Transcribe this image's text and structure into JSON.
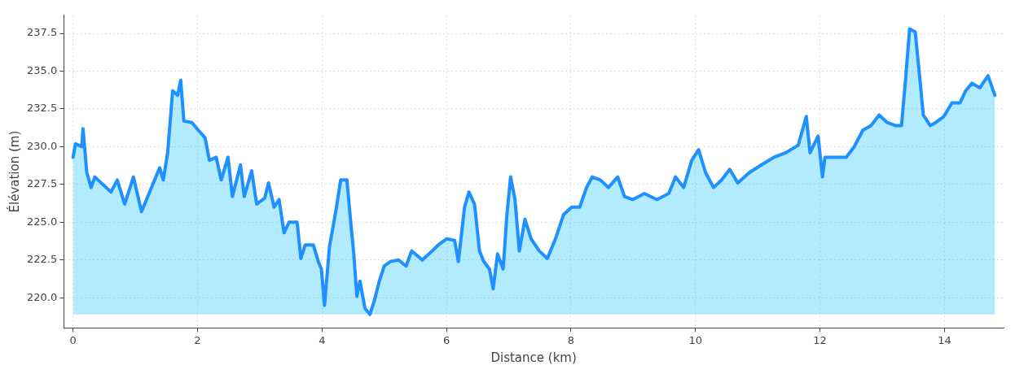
{
  "chart_data": {
    "type": "area",
    "xlabel": "Distance (km)",
    "ylabel": "Élévation (m)",
    "xlim": [
      -0.15,
      14.95
    ],
    "xticks": [
      0,
      2,
      4,
      6,
      8,
      10,
      12,
      14
    ],
    "ylim": [
      218,
      238.7
    ],
    "yticks": [
      {
        "value": 220,
        "label": "220.0"
      },
      {
        "value": 222.5,
        "label": "222.5"
      },
      {
        "value": 225,
        "label": "225.0"
      },
      {
        "value": 227.5,
        "label": "227.5"
      },
      {
        "value": 230,
        "label": "230.0"
      },
      {
        "value": 232.5,
        "label": "232.5"
      },
      {
        "value": 235,
        "label": "235.0"
      },
      {
        "value": 237.5,
        "label": "237.5"
      }
    ],
    "grid": true,
    "legend": false,
    "x": [
      0,
      0.04,
      0.14,
      0.16,
      0.22,
      0.29,
      0.35,
      0.48,
      0.61,
      0.71,
      0.83,
      0.97,
      1.1,
      1.23,
      1.39,
      1.45,
      1.52,
      1.6,
      1.68,
      1.73,
      1.78,
      1.91,
      2.01,
      2.12,
      2.19,
      2.3,
      2.38,
      2.49,
      2.56,
      2.69,
      2.75,
      2.87,
      2.95,
      3.08,
      3.14,
      3.23,
      3.31,
      3.39,
      3.47,
      3.6,
      3.66,
      3.73,
      3.86,
      3.94,
      3.99,
      4.04,
      4.12,
      4.22,
      4.3,
      4.4,
      4.45,
      4.51,
      4.56,
      4.61,
      4.69,
      4.77,
      4.84,
      4.92,
      5,
      5.1,
      5.23,
      5.35,
      5.44,
      5.61,
      5.77,
      5.87,
      6,
      6.13,
      6.19,
      6.29,
      6.36,
      6.45,
      6.53,
      6.6,
      6.69,
      6.75,
      6.82,
      6.91,
      6.97,
      7.03,
      7.1,
      7.17,
      7.26,
      7.36,
      7.49,
      7.62,
      7.75,
      7.88,
      8.01,
      8.14,
      8.25,
      8.34,
      8.47,
      8.6,
      8.75,
      8.86,
      8.99,
      9.18,
      9.38,
      9.57,
      9.68,
      9.81,
      9.94,
      10.05,
      10.16,
      10.29,
      10.42,
      10.55,
      10.68,
      10.87,
      11.06,
      11.26,
      11.45,
      11.65,
      11.78,
      11.84,
      11.97,
      12.04,
      12.08,
      12.3,
      12.42,
      12.55,
      12.69,
      12.82,
      12.95,
      13.08,
      13.21,
      13.31,
      13.38,
      13.44,
      13.53,
      13.6,
      13.66,
      13.77,
      13.86,
      13.99,
      14.12,
      14.25,
      14.34,
      14.44,
      14.57,
      14.7,
      14.81
    ],
    "series": [
      {
        "color": "#1e90ff",
        "values": [
          229.3,
          230.2,
          230,
          231.2,
          228.3,
          227.3,
          228,
          227.5,
          227,
          227.8,
          226.2,
          228,
          225.7,
          227,
          228.6,
          227.8,
          229.6,
          233.7,
          233.4,
          234.4,
          231.7,
          231.6,
          231.1,
          230.6,
          229.1,
          229.3,
          227.8,
          229.3,
          226.7,
          228.8,
          226.7,
          228.4,
          226.2,
          226.6,
          227.6,
          226,
          226.5,
          224.3,
          225,
          225,
          222.6,
          223.5,
          223.5,
          222.4,
          221.9,
          219.5,
          223.4,
          225.7,
          227.8,
          227.8,
          225.5,
          222.9,
          220.1,
          221.1,
          219.3,
          218.9,
          219.8,
          221.1,
          222.1,
          222.4,
          222.5,
          222.1,
          223.1,
          222.5,
          223.1,
          223.5,
          223.9,
          223.8,
          222.4,
          226,
          227,
          226.2,
          223.1,
          222.4,
          221.9,
          220.6,
          222.9,
          221.9,
          225.5,
          228,
          226.5,
          223.1,
          225.2,
          223.9,
          223.1,
          222.6,
          223.9,
          225.5,
          226,
          226,
          227.3,
          228,
          227.8,
          227.3,
          228,
          226.7,
          226.5,
          226.9,
          226.5,
          226.9,
          228,
          227.3,
          229.1,
          229.8,
          228.3,
          227.3,
          227.8,
          228.5,
          227.6,
          228.3,
          228.8,
          229.3,
          229.6,
          230.1,
          232,
          229.6,
          230.7,
          228,
          229.3,
          229.3,
          229.3,
          230,
          231.1,
          231.4,
          232.1,
          231.6,
          231.4,
          231.4,
          234.7,
          237.8,
          237.6,
          234.7,
          232.1,
          231.4,
          231.6,
          232,
          232.9,
          232.9,
          233.7,
          234.2,
          233.9,
          234.7,
          233.4
        ]
      }
    ]
  }
}
